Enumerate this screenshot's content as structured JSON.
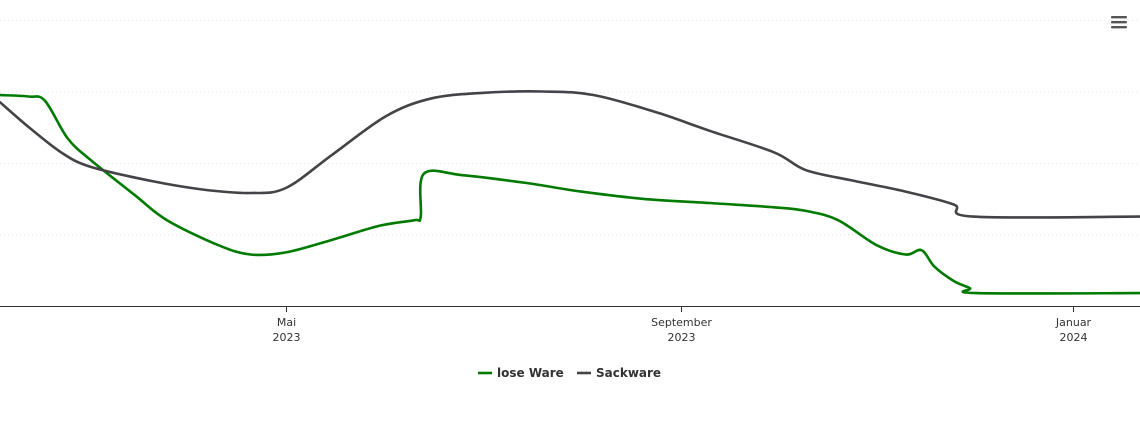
{
  "chart_data": {
    "type": "line",
    "title": "",
    "xlabel": "",
    "ylabel": "",
    "grid": true,
    "legend_position": "bottom",
    "x_ticks": [
      {
        "month": "Mai",
        "year": "2023",
        "date": "2023-05-01"
      },
      {
        "month": "September",
        "year": "2023",
        "date": "2023-09-01"
      },
      {
        "month": "Januar",
        "year": "2024",
        "date": "2024-01-01"
      }
    ],
    "xlim": [
      "2023-02-01",
      "2024-01-22"
    ],
    "ylim": [
      0,
      4
    ],
    "series": [
      {
        "name": "lose Ware",
        "color": "#007a00",
        "points": [
          [
            "2023-02-01",
            2.95
          ],
          [
            "2023-02-10",
            2.93
          ],
          [
            "2023-02-15",
            2.87
          ],
          [
            "2023-02-22",
            2.35
          ],
          [
            "2023-03-01",
            2.05
          ],
          [
            "2023-03-15",
            1.55
          ],
          [
            "2023-03-25",
            1.2
          ],
          [
            "2023-04-10",
            0.85
          ],
          [
            "2023-04-20",
            0.72
          ],
          [
            "2023-05-01",
            0.75
          ],
          [
            "2023-05-15",
            0.92
          ],
          [
            "2023-05-30",
            1.12
          ],
          [
            "2023-06-10",
            1.2
          ],
          [
            "2023-06-12",
            1.25
          ],
          [
            "2023-06-13",
            1.85
          ],
          [
            "2023-06-25",
            1.83
          ],
          [
            "2023-07-15",
            1.72
          ],
          [
            "2023-08-01",
            1.6
          ],
          [
            "2023-08-20",
            1.5
          ],
          [
            "2023-09-10",
            1.44
          ],
          [
            "2023-09-30",
            1.38
          ],
          [
            "2023-10-10",
            1.33
          ],
          [
            "2023-10-20",
            1.2
          ],
          [
            "2023-11-01",
            0.85
          ],
          [
            "2023-11-10",
            0.72
          ],
          [
            "2023-11-15",
            0.78
          ],
          [
            "2023-11-19",
            0.55
          ],
          [
            "2023-11-25",
            0.35
          ],
          [
            "2023-11-30",
            0.25
          ],
          [
            "2023-12-02",
            0.18
          ],
          [
            "2024-01-22",
            0.18
          ]
        ]
      },
      {
        "name": "Sackware",
        "color": "#434348",
        "points": [
          [
            "2023-02-01",
            2.85
          ],
          [
            "2023-02-10",
            2.5
          ],
          [
            "2023-02-20",
            2.15
          ],
          [
            "2023-03-01",
            1.95
          ],
          [
            "2023-03-20",
            1.75
          ],
          [
            "2023-04-05",
            1.63
          ],
          [
            "2023-04-20",
            1.58
          ],
          [
            "2023-05-01",
            1.65
          ],
          [
            "2023-05-15",
            2.1
          ],
          [
            "2023-06-01",
            2.65
          ],
          [
            "2023-06-15",
            2.9
          ],
          [
            "2023-07-01",
            2.98
          ],
          [
            "2023-07-20",
            3.0
          ],
          [
            "2023-08-05",
            2.95
          ],
          [
            "2023-08-25",
            2.7
          ],
          [
            "2023-09-10",
            2.45
          ],
          [
            "2023-09-30",
            2.15
          ],
          [
            "2023-10-10",
            1.9
          ],
          [
            "2023-10-25",
            1.75
          ],
          [
            "2023-11-10",
            1.6
          ],
          [
            "2023-11-25",
            1.42
          ],
          [
            "2023-12-01",
            1.25
          ],
          [
            "2024-01-22",
            1.25
          ]
        ]
      }
    ]
  }
}
